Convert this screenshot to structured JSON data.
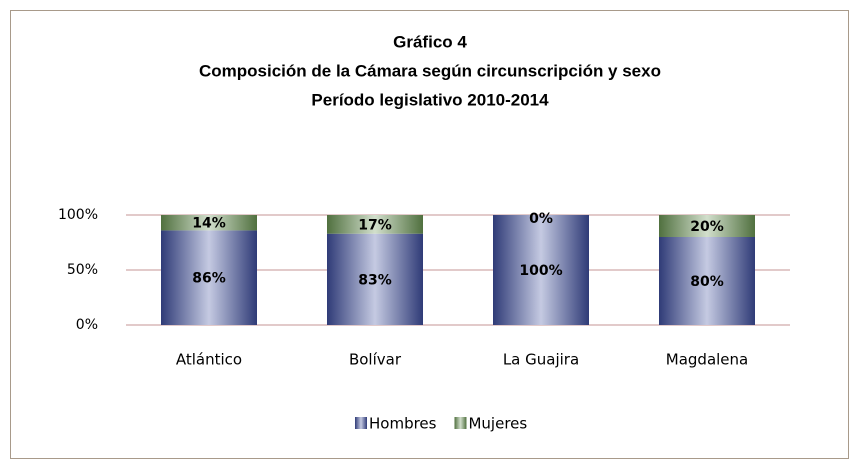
{
  "chart_data": {
    "type": "stacked_bar",
    "title": "Gráfico 4",
    "subtitle": [
      "Composición de la Cámara según circunscripción y sexo",
      "Período legislativo 2010-2014"
    ],
    "categories": [
      "Atlántico",
      "Bolívar",
      "La Guajira",
      "Magdalena"
    ],
    "series": [
      {
        "name": "Hombres",
        "color": "#3f4f9f",
        "values": [
          86,
          83,
          100,
          80
        ],
        "value_labels": [
          "86%",
          "83%",
          "100%",
          "80%"
        ]
      },
      {
        "name": "Mujeres",
        "color": "#6a9554",
        "values": [
          14,
          17,
          0,
          20
        ],
        "value_labels": [
          "14%",
          "17%",
          "0%",
          "20%"
        ]
      }
    ],
    "ylim": [
      0,
      100
    ],
    "yticks": [
      {
        "value": 0,
        "label": "0%"
      },
      {
        "value": 50,
        "label": "50%"
      },
      {
        "value": 100,
        "label": "100%"
      }
    ],
    "grid": true,
    "legend": "bottom"
  }
}
